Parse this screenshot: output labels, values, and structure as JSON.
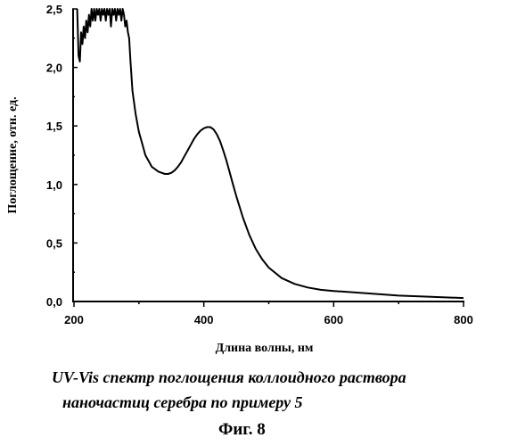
{
  "chart_data": {
    "type": "line",
    "xlabel": "Длина волны, нм",
    "ylabel": "Поглощение, отн. ед.",
    "xlim": [
      200,
      800
    ],
    "ylim": [
      0,
      2.5
    ],
    "xticks": [
      200,
      400,
      600,
      800
    ],
    "xtick_labels": [
      "200",
      "400",
      "600",
      "800"
    ],
    "yticks": [
      0,
      0.5,
      1.0,
      1.5,
      2.0,
      2.5
    ],
    "ytick_labels": [
      "0,0",
      "0,5",
      "1,0",
      "1,5",
      "2,0",
      "2,5"
    ],
    "grid": false,
    "series": [
      {
        "x": [
          205,
          207,
          209,
          211,
          213,
          215,
          217,
          219,
          221,
          223,
          225,
          227,
          229,
          231,
          233,
          235,
          237,
          239,
          241,
          243,
          245,
          247,
          249,
          251,
          253,
          255,
          257,
          259,
          261,
          263,
          265,
          267,
          269,
          271,
          273,
          275,
          277,
          279,
          281,
          283,
          285,
          287,
          290,
          295,
          300,
          305,
          310,
          315,
          320,
          325,
          330,
          335,
          340,
          345,
          350,
          355,
          360,
          365,
          370,
          375,
          380,
          385,
          390,
          395,
          400,
          405,
          410,
          415,
          420,
          425,
          430,
          435,
          440,
          445,
          450,
          460,
          470,
          480,
          490,
          500,
          520,
          540,
          560,
          580,
          600,
          650,
          700,
          750,
          800
        ],
        "y": [
          2.5,
          2.1,
          2.05,
          2.3,
          2.2,
          2.35,
          2.25,
          2.4,
          2.3,
          2.45,
          2.35,
          2.5,
          2.4,
          2.5,
          2.4,
          2.5,
          2.45,
          2.5,
          2.4,
          2.5,
          2.45,
          2.5,
          2.4,
          2.5,
          2.45,
          2.5,
          2.35,
          2.5,
          2.45,
          2.5,
          2.4,
          2.5,
          2.45,
          2.5,
          2.4,
          2.5,
          2.45,
          2.35,
          2.4,
          2.3,
          2.25,
          2.05,
          1.8,
          1.6,
          1.45,
          1.35,
          1.25,
          1.2,
          1.15,
          1.13,
          1.11,
          1.1,
          1.09,
          1.09,
          1.1,
          1.12,
          1.15,
          1.19,
          1.24,
          1.29,
          1.34,
          1.39,
          1.43,
          1.46,
          1.48,
          1.49,
          1.49,
          1.47,
          1.43,
          1.37,
          1.29,
          1.2,
          1.1,
          1.0,
          0.9,
          0.72,
          0.57,
          0.45,
          0.36,
          0.29,
          0.2,
          0.15,
          0.12,
          0.1,
          0.09,
          0.07,
          0.05,
          0.04,
          0.03
        ]
      }
    ]
  },
  "caption": {
    "line1": "UV-Vis спектр поглощения коллоидного раствора",
    "line2": "наночастиц серебра по примеру 5"
  },
  "figure_label": "Фиг. 8"
}
